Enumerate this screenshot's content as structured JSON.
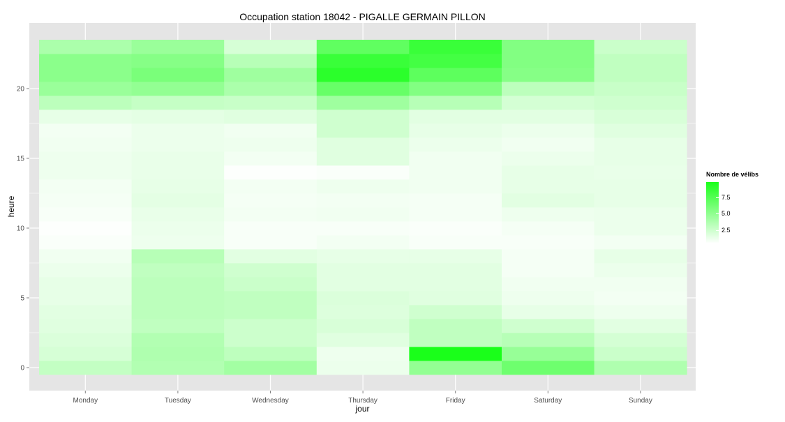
{
  "chart_data": {
    "type": "heatmap",
    "title": "Occupation station 18042 - PIGALLE GERMAIN PILLON",
    "xlabel": "jour",
    "ylabel": "heure",
    "x_categories": [
      "Monday",
      "Tuesday",
      "Wednesday",
      "Thursday",
      "Friday",
      "Saturday",
      "Sunday"
    ],
    "y_ticks": [
      0,
      5,
      10,
      15,
      20
    ],
    "ylim": [
      -0.5,
      23.5
    ],
    "color_scale": {
      "name": "Nombre de vélibs",
      "low": "#ffffff",
      "high": "#1aff1a",
      "min": 0,
      "max": 9.5,
      "ticks": [
        "2.5",
        "5.0",
        "7.5"
      ]
    },
    "grid": true,
    "values": {
      "Monday": [
        2.5,
        1.7,
        1.5,
        1.3,
        1.2,
        1.0,
        1.0,
        0.8,
        0.6,
        0.2,
        0.1,
        0.3,
        0.4,
        0.5,
        0.7,
        0.7,
        0.6,
        0.5,
        1.0,
        2.8,
        4.2,
        4.8,
        4.8,
        3.5
      ],
      "Tuesday": [
        3.2,
        3.3,
        3.2,
        2.6,
        2.8,
        2.8,
        2.8,
        2.6,
        3.0,
        0.7,
        0.8,
        0.9,
        1.1,
        1.0,
        0.9,
        0.9,
        0.8,
        0.8,
        1.1,
        2.4,
        4.5,
        5.5,
        5.0,
        4.2
      ],
      "Wednesday": [
        3.8,
        2.7,
        2.1,
        2.1,
        2.6,
        2.6,
        2.2,
        2.0,
        1.2,
        0.3,
        0.3,
        0.5,
        0.4,
        0.5,
        0.1,
        0.5,
        0.7,
        0.6,
        1.3,
        2.3,
        3.5,
        4.0,
        3.0,
        1.7
      ],
      "Thursday": [
        0.8,
        0.7,
        1.3,
        1.6,
        1.4,
        1.5,
        1.2,
        1.2,
        1.0,
        0.5,
        0.3,
        0.6,
        0.5,
        0.7,
        0.2,
        1.3,
        1.3,
        2.0,
        2.0,
        4.0,
        6.3,
        8.8,
        8.2,
        6.6
      ],
      "Friday": [
        4.5,
        9.5,
        2.6,
        2.6,
        2.0,
        1.3,
        1.2,
        1.2,
        1.0,
        0.3,
        0.2,
        0.4,
        0.4,
        0.6,
        0.6,
        0.6,
        0.8,
        1.0,
        1.2,
        3.0,
        5.2,
        6.7,
        7.8,
        8.2
      ],
      "Saturday": [
        6.0,
        4.3,
        3.0,
        2.0,
        1.0,
        0.7,
        0.6,
        0.4,
        0.4,
        0.3,
        0.4,
        0.7,
        1.2,
        1.0,
        1.0,
        0.8,
        0.6,
        0.8,
        1.2,
        1.8,
        2.8,
        5.0,
        5.2,
        5.2
      ],
      "Sunday": [
        3.3,
        2.2,
        1.8,
        1.2,
        0.7,
        0.5,
        0.6,
        0.8,
        1.0,
        0.5,
        0.8,
        0.8,
        1.0,
        1.0,
        0.9,
        1.0,
        1.0,
        1.3,
        1.6,
        2.0,
        2.3,
        2.6,
        2.6,
        2.2
      ]
    }
  }
}
